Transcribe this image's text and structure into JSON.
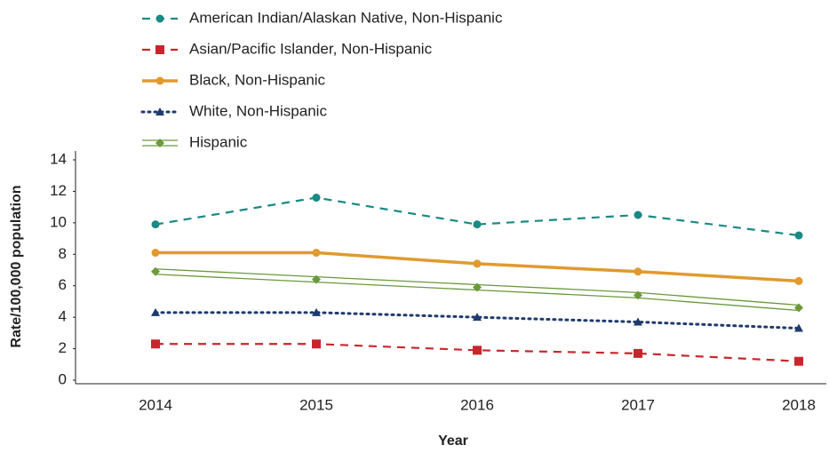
{
  "chart_data": {
    "type": "line",
    "x_label": "Year",
    "y_label": "Rate/100,000 population",
    "categories": [
      "2014",
      "2015",
      "2016",
      "2017",
      "2018"
    ],
    "ylim": [
      0,
      14
    ],
    "yticks": [
      0,
      2,
      4,
      6,
      8,
      10,
      12,
      14
    ],
    "series": [
      {
        "name": "American Indian/Alaskan Native, Non-Hispanic",
        "color": "#1a8a85",
        "style": "dashed",
        "marker": "circle",
        "values": [
          9.9,
          11.6,
          9.9,
          10.5,
          9.2
        ]
      },
      {
        "name": "Asian/Pacific Islander, Non-Hispanic",
        "color": "#c8262c",
        "style": "dashed",
        "marker": "square",
        "values": [
          2.3,
          2.3,
          1.9,
          1.7,
          1.2
        ]
      },
      {
        "name": "Black, Non-Hispanic",
        "color": "#e09a30",
        "style": "solid",
        "marker": "circle",
        "values": [
          8.1,
          8.1,
          7.4,
          6.9,
          6.3
        ]
      },
      {
        "name": "White, Non-Hispanic",
        "color": "#1f3a6e",
        "style": "dotted",
        "marker": "triangle",
        "values": [
          4.3,
          4.3,
          4.0,
          3.7,
          3.3
        ]
      },
      {
        "name": "Hispanic",
        "color": "#6a9a3a",
        "style": "double",
        "marker": "diamond",
        "values": [
          6.9,
          6.4,
          5.9,
          5.4,
          4.6
        ]
      }
    ]
  }
}
